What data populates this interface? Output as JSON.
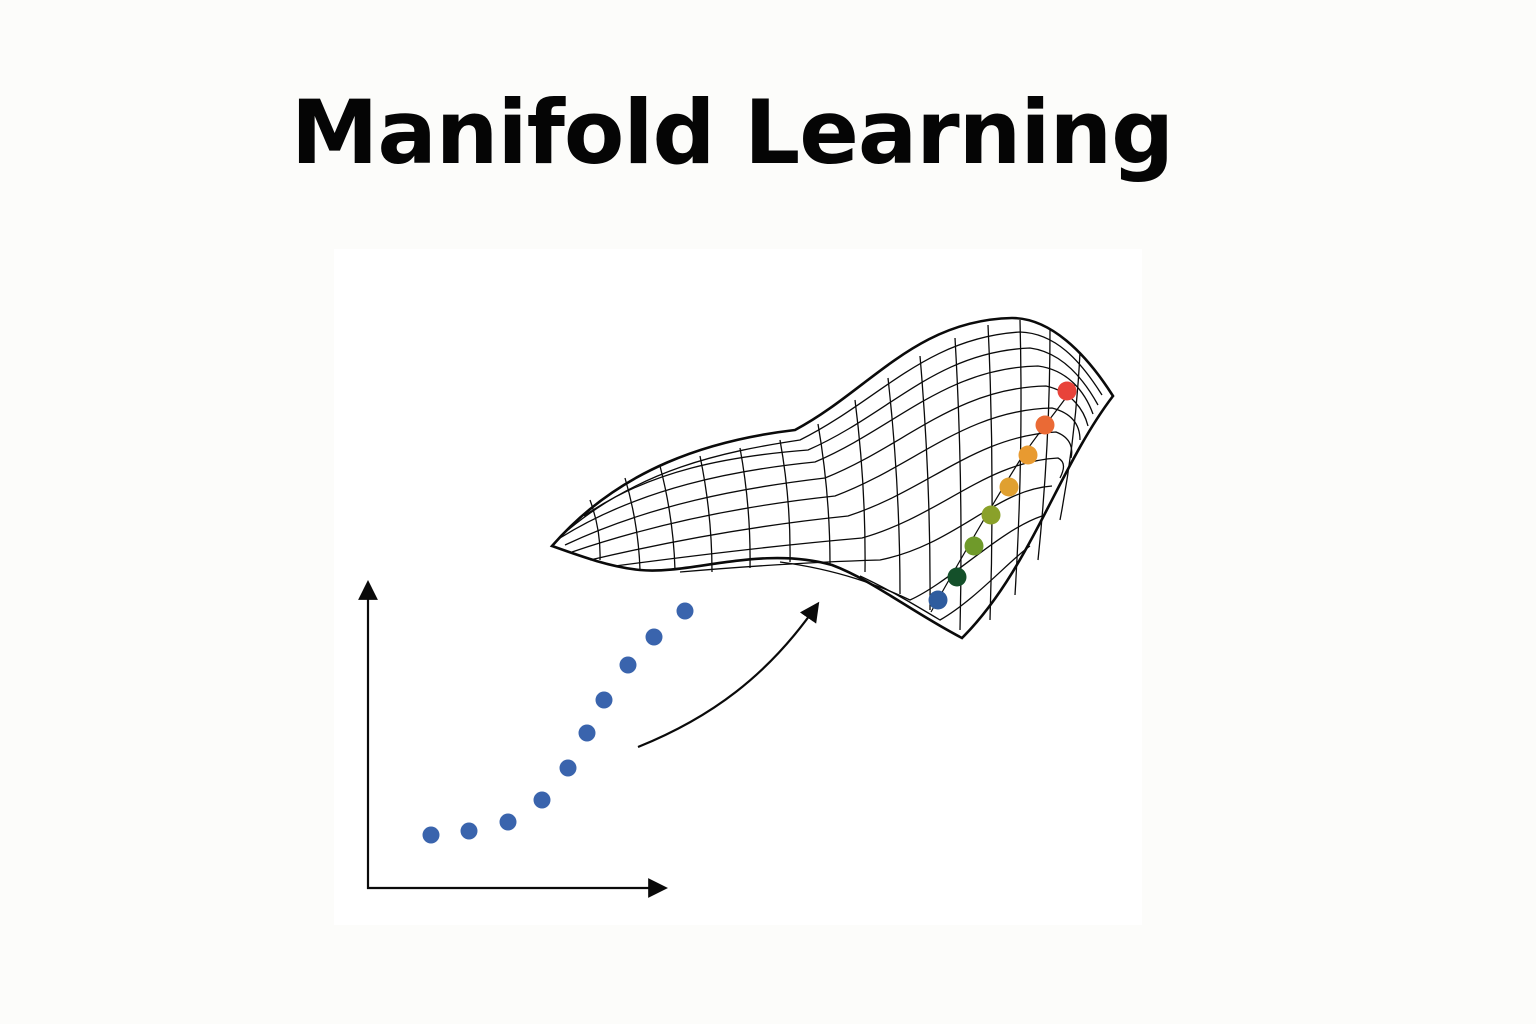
{
  "title": "Manifold Learning",
  "colors": {
    "background": "#fcfcfa",
    "panel": "#ffffff",
    "ink": "#0a0a0a",
    "embedded_point": "#3a64ad",
    "manifold_gradient": [
      "#2f5c9e",
      "#14502a",
      "#6f9a2a",
      "#8aa12a",
      "#e0a030",
      "#e89a30",
      "#ea6a35",
      "#e8433a"
    ]
  },
  "icons": [
    "x-axis-arrow",
    "y-axis-arrow",
    "mapping-arrow",
    "manifold-surface-mesh"
  ],
  "low_dimensional_points": 10,
  "manifold_points": 8
}
